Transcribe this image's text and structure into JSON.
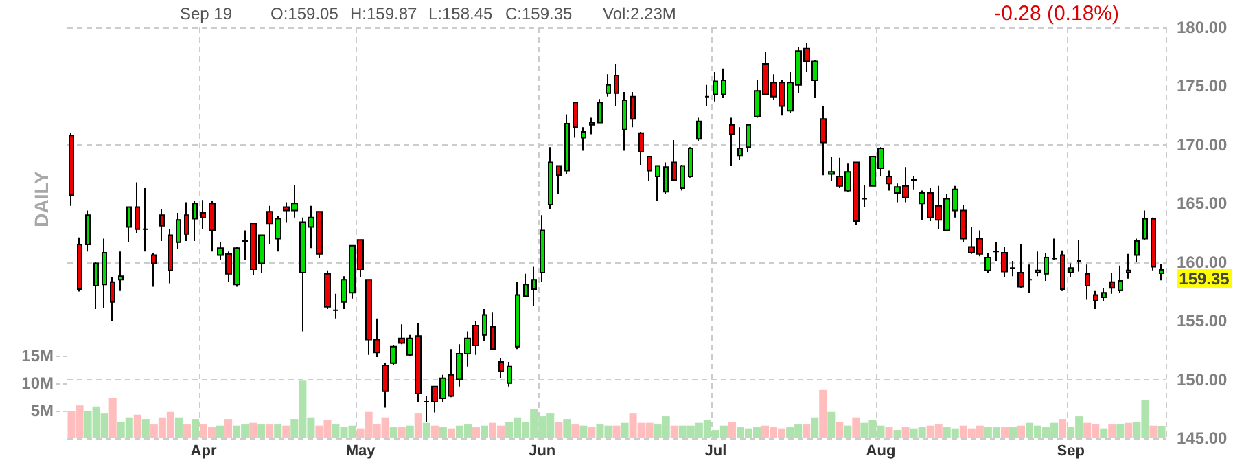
{
  "chart_data": {
    "type": "candlestick",
    "annotations": [
      "Sep 19",
      "O:159.05",
      "H:159.87",
      "L:158.45",
      "C:159.35",
      "Vol:2.23M",
      "-0.28 (0.18%)",
      "DAILY",
      "159.35"
    ],
    "categories": [
      null,
      null,
      null,
      null,
      null,
      null,
      null,
      null,
      null,
      null,
      null,
      null,
      null,
      null,
      null,
      null,
      "Apr",
      null,
      null,
      null,
      null,
      null,
      null,
      null,
      null,
      null,
      null,
      null,
      null,
      null,
      null,
      null,
      null,
      null,
      null,
      "May",
      null,
      null,
      null,
      null,
      null,
      null,
      null,
      null,
      null,
      null,
      null,
      null,
      null,
      null,
      null,
      null,
      null,
      null,
      null,
      null,
      null,
      "Jun",
      null,
      null,
      null,
      null,
      null,
      null,
      null,
      null,
      null,
      null,
      null,
      null,
      null,
      null,
      null,
      null,
      null,
      null,
      null,
      null,
      "Jul",
      null,
      null,
      null,
      null,
      null,
      null,
      null,
      null,
      null,
      null,
      null,
      null,
      null,
      null,
      null,
      null,
      null,
      null,
      null,
      "Aug",
      null,
      null,
      null,
      null,
      null,
      null,
      null,
      null,
      null,
      null,
      null,
      null,
      null,
      null,
      null,
      null,
      null,
      null,
      null,
      null,
      null,
      null,
      "Sep",
      null,
      null,
      null,
      null,
      null,
      null,
      null,
      null,
      null,
      null,
      null
    ],
    "series": [
      {
        "ohlc": [
          [
            170.8,
            171.0,
            164.8,
            165.7
          ],
          [
            161.5,
            162.1,
            157.5,
            157.7
          ],
          [
            161.5,
            164.4,
            160.9,
            164.0
          ],
          [
            158.0,
            160.0,
            156.0,
            159.9
          ],
          [
            158.1,
            162.0,
            156.1,
            160.8
          ],
          [
            158.3,
            158.7,
            155.0,
            156.6
          ],
          [
            158.5,
            160.9,
            157.6,
            158.8
          ],
          [
            163.0,
            164.7,
            161.7,
            164.7
          ],
          [
            164.7,
            166.8,
            162.5,
            162.8
          ],
          [
            162.8,
            166.3,
            160.9,
            162.8
          ],
          [
            160.6,
            160.8,
            157.9,
            159.9
          ],
          [
            164.0,
            164.5,
            161.8,
            163.1
          ],
          [
            162.3,
            162.8,
            158.2,
            159.3
          ],
          [
            161.7,
            164.2,
            161.1,
            163.6
          ],
          [
            164.0,
            165.1,
            161.8,
            162.4
          ],
          [
            163.7,
            165.2,
            161.8,
            165.0
          ],
          [
            164.2,
            165.3,
            162.8,
            163.8
          ],
          [
            165.0,
            165.2,
            160.9,
            162.7
          ],
          [
            160.6,
            161.7,
            160.2,
            161.2
          ],
          [
            160.7,
            160.9,
            158.3,
            159.0
          ],
          [
            158.1,
            161.3,
            157.9,
            161.2
          ],
          [
            161.8,
            162.7,
            160.2,
            161.8
          ],
          [
            163.3,
            163.3,
            158.9,
            159.4
          ],
          [
            159.9,
            162.3,
            159.1,
            162.3
          ],
          [
            164.3,
            164.8,
            161.5,
            163.3
          ],
          [
            162.0,
            163.9,
            160.9,
            163.7
          ],
          [
            164.7,
            165.1,
            163.4,
            164.4
          ],
          [
            164.4,
            166.6,
            163.8,
            165.0
          ],
          [
            159.1,
            163.8,
            154.1,
            163.4
          ],
          [
            163.0,
            164.8,
            161.2,
            163.8
          ],
          [
            164.3,
            164.3,
            160.4,
            160.7
          ],
          [
            159.0,
            159.3,
            156.0,
            156.2
          ],
          [
            155.9,
            157.3,
            155.2,
            155.9
          ],
          [
            156.6,
            158.8,
            156.0,
            158.5
          ],
          [
            157.4,
            161.4,
            156.9,
            161.4
          ],
          [
            161.9,
            161.9,
            158.7,
            159.4
          ],
          [
            158.5,
            158.5,
            152.1,
            153.4
          ],
          [
            153.4,
            155.2,
            151.9,
            152.3
          ],
          [
            151.2,
            151.4,
            147.6,
            149.0
          ],
          [
            151.4,
            152.9,
            151.2,
            152.8
          ],
          [
            153.5,
            154.7,
            153.0,
            153.1
          ],
          [
            152.1,
            153.8,
            152.0,
            153.5
          ],
          [
            153.7,
            154.8,
            148.1,
            148.8
          ],
          [
            148.1,
            148.6,
            146.4,
            148.1
          ],
          [
            149.4,
            149.4,
            147.2,
            148.1
          ],
          [
            148.4,
            150.4,
            148.1,
            150.1
          ],
          [
            150.4,
            152.6,
            148.5,
            148.6
          ],
          [
            150.0,
            153.0,
            149.4,
            152.2
          ],
          [
            152.2,
            154.1,
            151.1,
            153.5
          ],
          [
            154.6,
            155.0,
            152.1,
            152.9
          ],
          [
            153.8,
            156.0,
            153.3,
            155.5
          ],
          [
            154.5,
            155.7,
            152.6,
            152.6
          ],
          [
            151.5,
            151.8,
            150.1,
            150.7
          ],
          [
            149.7,
            151.5,
            149.4,
            151.1
          ],
          [
            152.8,
            158.3,
            152.6,
            157.2
          ],
          [
            157.1,
            159.0,
            157.1,
            158.1
          ],
          [
            157.7,
            159.6,
            156.3,
            158.5
          ],
          [
            159.1,
            164.0,
            158.3,
            162.7
          ],
          [
            164.9,
            169.8,
            164.5,
            168.5
          ],
          [
            168.2,
            168.2,
            165.8,
            167.4
          ],
          [
            167.8,
            172.6,
            167.5,
            171.8
          ],
          [
            173.6,
            173.6,
            170.6,
            171.5
          ],
          [
            170.6,
            171.5,
            169.5,
            171.1
          ],
          [
            171.9,
            172.3,
            170.9,
            171.7
          ],
          [
            171.9,
            173.9,
            171.9,
            173.6
          ],
          [
            174.4,
            176.0,
            174.1,
            175.1
          ],
          [
            175.9,
            176.9,
            173.3,
            174.4
          ],
          [
            171.3,
            174.5,
            169.5,
            173.8
          ],
          [
            174.1,
            174.5,
            171.5,
            172.2
          ],
          [
            171.0,
            171.1,
            168.3,
            169.4
          ],
          [
            169.0,
            169.0,
            166.9,
            167.8
          ],
          [
            167.3,
            168.2,
            165.2,
            168.2
          ],
          [
            166.0,
            168.5,
            165.8,
            168.1
          ],
          [
            168.5,
            170.4,
            167.0,
            167.0
          ],
          [
            166.3,
            168.3,
            166.1,
            168.2
          ],
          [
            167.3,
            169.8,
            167.2,
            169.7
          ],
          [
            170.5,
            172.3,
            170.3,
            172.0
          ],
          [
            174.1,
            175.1,
            173.3,
            174.1
          ],
          [
            174.3,
            176.2,
            173.7,
            175.4
          ],
          [
            174.3,
            176.5,
            174.0,
            175.5
          ],
          [
            171.7,
            172.3,
            168.2,
            170.9
          ],
          [
            169.1,
            171.5,
            168.7,
            169.7
          ],
          [
            169.8,
            171.8,
            169.4,
            171.7
          ],
          [
            172.4,
            175.5,
            172.3,
            174.6
          ],
          [
            176.9,
            177.9,
            174.3,
            174.3
          ],
          [
            175.3,
            176.0,
            173.8,
            174.1
          ],
          [
            175.3,
            175.5,
            172.5,
            173.3
          ],
          [
            172.9,
            176.2,
            172.7,
            175.3
          ],
          [
            175.1,
            178.3,
            174.4,
            178.0
          ],
          [
            178.2,
            178.7,
            176.2,
            177.1
          ],
          [
            175.5,
            177.2,
            174.0,
            177.1
          ],
          [
            172.2,
            173.3,
            167.4,
            170.2
          ],
          [
            167.5,
            169.0,
            166.9,
            167.7
          ],
          [
            167.3,
            168.9,
            166.3,
            166.5
          ],
          [
            166.1,
            168.4,
            166.0,
            167.7
          ],
          [
            168.5,
            168.5,
            163.2,
            163.5
          ],
          [
            165.4,
            166.6,
            164.7,
            165.4
          ],
          [
            166.5,
            169.0,
            166.5,
            169.0
          ],
          [
            168.0,
            169.8,
            167.3,
            169.7
          ],
          [
            167.3,
            167.8,
            166.1,
            166.7
          ],
          [
            165.9,
            166.7,
            165.1,
            166.4
          ],
          [
            166.5,
            168.1,
            165.1,
            165.5
          ],
          [
            167.0,
            167.3,
            166.2,
            167.0
          ],
          [
            165.0,
            166.1,
            163.6,
            165.9
          ],
          [
            165.9,
            166.3,
            163.5,
            163.8
          ],
          [
            164.8,
            166.5,
            162.8,
            163.6
          ],
          [
            162.7,
            165.8,
            162.7,
            165.4
          ],
          [
            164.4,
            166.5,
            163.8,
            166.2
          ],
          [
            164.4,
            164.9,
            161.7,
            162.0
          ],
          [
            161.3,
            163.0,
            160.7,
            160.8
          ],
          [
            162.0,
            162.7,
            160.5,
            160.7
          ],
          [
            159.3,
            160.8,
            159.1,
            160.4
          ],
          [
            160.9,
            161.7,
            160.1,
            160.9
          ],
          [
            160.8,
            161.3,
            158.7,
            159.2
          ],
          [
            159.5,
            160.1,
            158.8,
            159.5
          ],
          [
            159.1,
            161.5,
            157.8,
            157.9
          ],
          [
            158.5,
            159.8,
            157.4,
            158.5
          ],
          [
            159.1,
            160.9,
            158.8,
            159.3
          ],
          [
            159.0,
            160.8,
            158.4,
            160.4
          ],
          [
            160.3,
            162.0,
            160.2,
            160.3
          ],
          [
            160.6,
            161.0,
            157.6,
            157.7
          ],
          [
            159.1,
            159.9,
            158.7,
            159.5
          ],
          [
            160.1,
            161.9,
            159.2,
            160.1
          ],
          [
            159.0,
            159.8,
            156.8,
            158.0
          ],
          [
            157.2,
            157.6,
            156.0,
            156.7
          ],
          [
            157.0,
            157.8,
            156.7,
            157.4
          ],
          [
            158.3,
            159.1,
            157.3,
            157.8
          ],
          [
            157.6,
            159.7,
            157.4,
            158.4
          ],
          [
            159.3,
            160.7,
            158.6,
            159.1
          ],
          [
            160.6,
            162.0,
            160.0,
            161.8
          ],
          [
            162.0,
            164.4,
            161.9,
            163.7
          ],
          [
            163.7,
            163.8,
            159.3,
            159.6
          ],
          [
            159.05,
            159.87,
            158.45,
            159.35
          ]
        ],
        "colors": [
          "#ee0000",
          "#ee0000",
          "#00dd00",
          "#00dd00",
          "#00dd00",
          "#ee0000",
          "#00dd00",
          "#00dd00",
          "#ee0000",
          "#000000",
          "#ee0000",
          "#ee0000",
          "#ee0000",
          "#00dd00",
          "#ee0000",
          "#00dd00",
          "#ee0000",
          "#ee0000",
          "#00dd00",
          "#ee0000",
          "#00dd00",
          "#000000",
          "#ee0000",
          "#00dd00",
          "#ee0000",
          "#00dd00",
          "#ee0000",
          "#00dd00",
          "#00dd00",
          "#00dd00",
          "#ee0000",
          "#ee0000",
          "#000000",
          "#00dd00",
          "#00dd00",
          "#ee0000",
          "#ee0000",
          "#ee0000",
          "#ee0000",
          "#00dd00",
          "#ee0000",
          "#00dd00",
          "#ee0000",
          "#000000",
          "#ee0000",
          "#00dd00",
          "#ee0000",
          "#00dd00",
          "#00dd00",
          "#ee0000",
          "#00dd00",
          "#ee0000",
          "#ee0000",
          "#00dd00",
          "#00dd00",
          "#00dd00",
          "#00dd00",
          "#00dd00",
          "#00dd00",
          "#ee0000",
          "#00dd00",
          "#ee0000",
          "#00dd00",
          "#ee0000",
          "#00dd00",
          "#00dd00",
          "#ee0000",
          "#00dd00",
          "#ee0000",
          "#ee0000",
          "#ee0000",
          "#00dd00",
          "#00dd00",
          "#ee0000",
          "#00dd00",
          "#00dd00",
          "#00dd00",
          "#000000",
          "#00dd00",
          "#00dd00",
          "#ee0000",
          "#00dd00",
          "#00dd00",
          "#00dd00",
          "#ee0000",
          "#ee0000",
          "#ee0000",
          "#00dd00",
          "#00dd00",
          "#ee0000",
          "#00dd00",
          "#ee0000",
          "#00dd00",
          "#ee0000",
          "#00dd00",
          "#ee0000",
          "#000000",
          "#00dd00",
          "#00dd00",
          "#ee0000",
          "#00dd00",
          "#ee0000",
          "#000000",
          "#00dd00",
          "#ee0000",
          "#ee0000",
          "#00dd00",
          "#00dd00",
          "#ee0000",
          "#ee0000",
          "#ee0000",
          "#00dd00",
          "#000000",
          "#ee0000",
          "#000000",
          "#ee0000",
          "#000000",
          "#00dd00",
          "#00dd00",
          "#000000",
          "#ee0000",
          "#00dd00",
          "#000000",
          "#ee0000",
          "#ee0000",
          "#00dd00",
          "#ee0000",
          "#00dd00",
          "#ee0000",
          "#00dd00",
          "#00dd00",
          "#ee0000",
          "#00dd00"
        ]
      },
      {
        "type": "bar",
        "axis": "y2",
        "values": [
          5.0,
          6.0,
          5.0,
          5.8,
          4.5,
          7.3,
          3.0,
          3.8,
          4.3,
          3.5,
          2.5,
          3.8,
          4.8,
          3.8,
          2.5,
          3.5,
          2.5,
          2.0,
          2.3,
          3.5,
          2.3,
          2.5,
          2.8,
          2.5,
          2.5,
          2.5,
          2.3,
          3.5,
          10.5,
          3.8,
          2.3,
          3.3,
          2.5,
          2.0,
          2.3,
          1.8,
          4.8,
          2.5,
          3.8,
          2.0,
          2.0,
          2.3,
          4.5,
          2.8,
          2.3,
          2.0,
          1.8,
          2.3,
          2.5,
          2.0,
          2.3,
          2.8,
          2.3,
          3.0,
          3.8,
          3.0,
          5.3,
          4.0,
          4.5,
          3.0,
          3.5,
          2.5,
          2.3,
          2.0,
          2.5,
          2.3,
          2.3,
          2.8,
          4.5,
          2.8,
          2.8,
          2.5,
          4.0,
          2.3,
          2.3,
          2.3,
          2.8,
          3.3,
          1.5,
          2.3,
          3.0,
          2.0,
          1.8,
          2.0,
          2.3,
          2.0,
          1.8,
          2.0,
          2.5,
          2.5,
          3.8,
          8.8,
          4.8,
          3.0,
          2.3,
          3.8,
          2.8,
          3.3,
          2.3,
          2.0,
          1.5,
          2.0,
          1.8,
          2.0,
          2.3,
          2.5,
          2.0,
          1.8,
          2.3,
          1.8,
          2.3,
          2.0,
          2.0,
          2.0,
          2.0,
          2.3,
          2.8,
          2.3,
          2.0,
          2.8,
          3.5,
          2.0,
          4.0,
          2.8,
          2.5,
          1.8,
          2.5,
          2.5,
          2.8,
          3.0,
          7.0,
          2.3,
          2.2
        ],
        "colors": [
          "#ffbdbd",
          "#ffbdbd",
          "#aee3ae",
          "#aee3ae",
          "#aee3ae",
          "#ffbdbd",
          "#aee3ae",
          "#aee3ae",
          "#ffbdbd",
          "#aee3ae",
          "#ffbdbd",
          "#ffbdbd",
          "#ffbdbd",
          "#aee3ae",
          "#ffbdbd",
          "#aee3ae",
          "#ffbdbd",
          "#ffbdbd",
          "#aee3ae",
          "#ffbdbd",
          "#aee3ae",
          "#aee3ae",
          "#ffbdbd",
          "#aee3ae",
          "#ffbdbd",
          "#aee3ae",
          "#ffbdbd",
          "#aee3ae",
          "#aee3ae",
          "#aee3ae",
          "#ffbdbd",
          "#ffbdbd",
          "#aee3ae",
          "#aee3ae",
          "#aee3ae",
          "#ffbdbd",
          "#ffbdbd",
          "#ffbdbd",
          "#ffbdbd",
          "#aee3ae",
          "#ffbdbd",
          "#aee3ae",
          "#ffbdbd",
          "#aee3ae",
          "#ffbdbd",
          "#aee3ae",
          "#ffbdbd",
          "#aee3ae",
          "#aee3ae",
          "#ffbdbd",
          "#aee3ae",
          "#ffbdbd",
          "#ffbdbd",
          "#aee3ae",
          "#aee3ae",
          "#aee3ae",
          "#aee3ae",
          "#aee3ae",
          "#aee3ae",
          "#ffbdbd",
          "#aee3ae",
          "#ffbdbd",
          "#aee3ae",
          "#ffbdbd",
          "#aee3ae",
          "#aee3ae",
          "#ffbdbd",
          "#aee3ae",
          "#ffbdbd",
          "#ffbdbd",
          "#ffbdbd",
          "#aee3ae",
          "#aee3ae",
          "#ffbdbd",
          "#aee3ae",
          "#aee3ae",
          "#aee3ae",
          "#aee3ae",
          "#aee3ae",
          "#aee3ae",
          "#ffbdbd",
          "#aee3ae",
          "#aee3ae",
          "#aee3ae",
          "#ffbdbd",
          "#ffbdbd",
          "#ffbdbd",
          "#aee3ae",
          "#aee3ae",
          "#ffbdbd",
          "#aee3ae",
          "#ffbdbd",
          "#aee3ae",
          "#ffbdbd",
          "#aee3ae",
          "#ffbdbd",
          "#aee3ae",
          "#aee3ae",
          "#aee3ae",
          "#ffbdbd",
          "#aee3ae",
          "#ffbdbd",
          "#aee3ae",
          "#aee3ae",
          "#ffbdbd",
          "#ffbdbd",
          "#aee3ae",
          "#aee3ae",
          "#ffbdbd",
          "#ffbdbd",
          "#ffbdbd",
          "#aee3ae",
          "#aee3ae",
          "#ffbdbd",
          "#aee3ae",
          "#ffbdbd",
          "#aee3ae",
          "#aee3ae",
          "#aee3ae",
          "#aee3ae",
          "#ffbdbd",
          "#aee3ae",
          "#aee3ae",
          "#ffbdbd",
          "#ffbdbd",
          "#aee3ae",
          "#ffbdbd",
          "#aee3ae",
          "#ffbdbd",
          "#aee3ae",
          "#aee3ae",
          "#ffbdbd",
          "#aee3ae"
        ]
      }
    ],
    "ylim": [
      145,
      180
    ],
    "yticks": [
      {
        "value": 145,
        "label": "145.00"
      },
      {
        "value": 150,
        "label": "150.00"
      },
      {
        "value": 155,
        "label": "155.00"
      },
      {
        "value": 160,
        "label": "160.00"
      },
      {
        "value": 165,
        "label": "165.00"
      },
      {
        "value": 170,
        "label": "170.00"
      },
      {
        "value": 175,
        "label": "175.00"
      },
      {
        "value": 180,
        "label": "180.00"
      }
    ],
    "y2lim": [
      0,
      75
    ],
    "y2ticks": [
      {
        "value": 5,
        "label": "5M"
      },
      {
        "value": 10,
        "label": "10M"
      },
      {
        "value": 15,
        "label": "15M"
      }
    ],
    "grid": true
  }
}
